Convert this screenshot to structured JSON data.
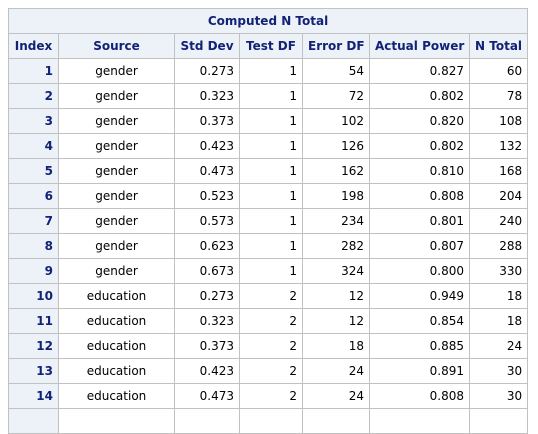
{
  "table": {
    "title": "Computed N Total",
    "columns": [
      "Index",
      "Source",
      "Std Dev",
      "Test DF",
      "Error DF",
      "Actual Power",
      "N Total"
    ],
    "rows": [
      [
        "1",
        "gender",
        "0.273",
        "1",
        "54",
        "0.827",
        "60"
      ],
      [
        "2",
        "gender",
        "0.323",
        "1",
        "72",
        "0.802",
        "78"
      ],
      [
        "3",
        "gender",
        "0.373",
        "1",
        "102",
        "0.820",
        "108"
      ],
      [
        "4",
        "gender",
        "0.423",
        "1",
        "126",
        "0.802",
        "132"
      ],
      [
        "5",
        "gender",
        "0.473",
        "1",
        "162",
        "0.810",
        "168"
      ],
      [
        "6",
        "gender",
        "0.523",
        "1",
        "198",
        "0.808",
        "204"
      ],
      [
        "7",
        "gender",
        "0.573",
        "1",
        "234",
        "0.801",
        "240"
      ],
      [
        "8",
        "gender",
        "0.623",
        "1",
        "282",
        "0.807",
        "288"
      ],
      [
        "9",
        "gender",
        "0.673",
        "1",
        "324",
        "0.800",
        "330"
      ],
      [
        "10",
        "education",
        "0.273",
        "2",
        "12",
        "0.949",
        "18"
      ],
      [
        "11",
        "education",
        "0.323",
        "2",
        "12",
        "0.854",
        "18"
      ],
      [
        "12",
        "education",
        "0.373",
        "2",
        "18",
        "0.885",
        "24"
      ],
      [
        "13",
        "education",
        "0.423",
        "2",
        "24",
        "0.891",
        "30"
      ],
      [
        "14",
        "education",
        "0.473",
        "2",
        "24",
        "0.808",
        "30"
      ],
      [
        "",
        "",
        "",
        "",
        "",
        "",
        ""
      ]
    ]
  }
}
